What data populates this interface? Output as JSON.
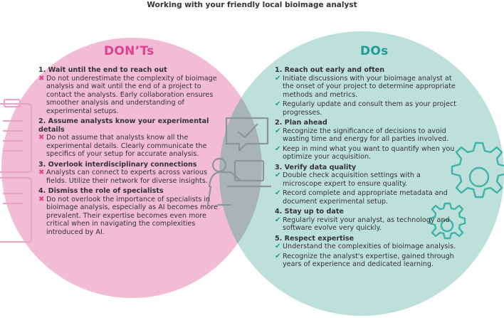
{
  "title": "Working with your friendly local bioimage analyst",
  "colors": {
    "left_circle": "#f2bcd5",
    "right_circle": "#bde0db",
    "overlap": "#a9b4b4",
    "donts_accent": "#e0408e",
    "dos_accent": "#1f9c93",
    "icon_stroke_left": "#e9a6c4",
    "icon_stroke_right": "#3fb3a8",
    "icon_stroke_center": "#8d9696"
  },
  "icons": [
    "clipboard-icon",
    "chat-bubble-icon",
    "person-at-laptop-icon",
    "gears-icon"
  ],
  "donts": {
    "heading": "DON’Ts",
    "sections": [
      {
        "title": "1. Wait until the end to reach out",
        "items": [
          "Do not underestimate the complexity of bioimage analysis and wait until the end of a project to contact the analysts. Early collaboration ensures smoother analysis and understanding of experimental setups."
        ]
      },
      {
        "title": "2. Assume analysts know your experimental details",
        "items": [
          "Do not assume that analysts know all the experimental details. Clearly communicate the specifics of your setup for accurate analysis."
        ]
      },
      {
        "title": "3. Overlook interdisciplinary connections",
        "items": [
          "Analysts can connect to experts across various fields. Utilize their network for diverse insights."
        ]
      },
      {
        "title": "4. Dismiss the role of specialists",
        "items": [
          "Do not overlook the importance of specialists in bioimage analysis, especially as AI becomes more prevalent. Their expertise becomes even more critical when in navigating the complexities introduced by AI."
        ]
      }
    ]
  },
  "dos": {
    "heading": "DOs",
    "sections": [
      {
        "title": "1. Reach out early and often",
        "items": [
          "Initiate discussions with your bioimage analyst at the onset of your project to determine appropriate methods and metrics.",
          "Regularly update and consult them as your project progresses."
        ]
      },
      {
        "title": "2. Plan ahead",
        "items": [
          "Recognize the significance of decisions to avoid wasting time and energy for all parties involved.",
          "Keep in mind what you want to quantify when you optimize your acquisition."
        ]
      },
      {
        "title": "3. Verify data quality",
        "items": [
          "Double check acquisition settings with a microscope expert to ensure quality.",
          "Record complete and appropriate metadata and document experimental setup."
        ]
      },
      {
        "title": "4. Stay up to date",
        "items": [
          "Regularly revisit your analyst, as technology and software evolve very quickly."
        ]
      },
      {
        "title": "5. Respect expertise",
        "items": [
          "Understand the complexities of bioimage analysis.",
          "Recognize the analyst's expertise, gained through years of experience and dedicated learning."
        ]
      }
    ]
  }
}
